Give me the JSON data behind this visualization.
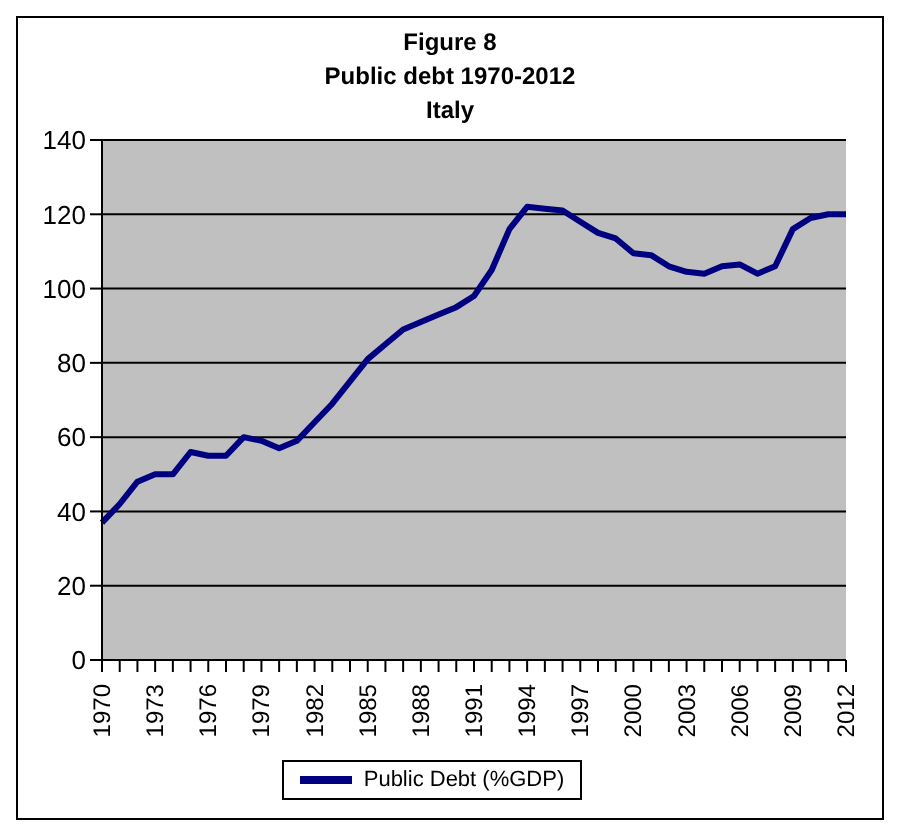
{
  "chart_data": {
    "type": "line",
    "title": "Figure 8\nPublic debt 1970-2012\nItaly",
    "categories": [
      "1970",
      null,
      null,
      "1973",
      null,
      null,
      "1976",
      null,
      null,
      "1979",
      null,
      null,
      "1982",
      null,
      null,
      "1985",
      null,
      null,
      "1988",
      null,
      null,
      "1991",
      null,
      null,
      "1994",
      null,
      null,
      "1997",
      null,
      null,
      "2000",
      null,
      null,
      "2003",
      null,
      null,
      "2006",
      null,
      null,
      "2009",
      null,
      null,
      "2012"
    ],
    "series": [
      {
        "name": "Public Debt (%GDP)",
        "color": "#000080",
        "values": [
          37,
          42,
          48,
          50,
          50,
          56,
          55,
          55,
          60,
          59,
          57,
          59,
          64,
          69,
          75,
          81,
          85,
          89,
          91,
          93,
          95,
          98,
          105,
          116,
          122,
          121.5,
          121,
          118,
          115,
          113.5,
          109.5,
          109,
          106,
          104.5,
          104,
          106,
          106.5,
          104,
          106,
          116,
          119,
          120,
          120
        ]
      }
    ],
    "ylim": [
      0,
      140
    ],
    "yticks": [
      0,
      20,
      40,
      60,
      80,
      100,
      120,
      140
    ],
    "grid": "y",
    "legend": "bottom",
    "marker": "none",
    "line_style": "solid"
  }
}
